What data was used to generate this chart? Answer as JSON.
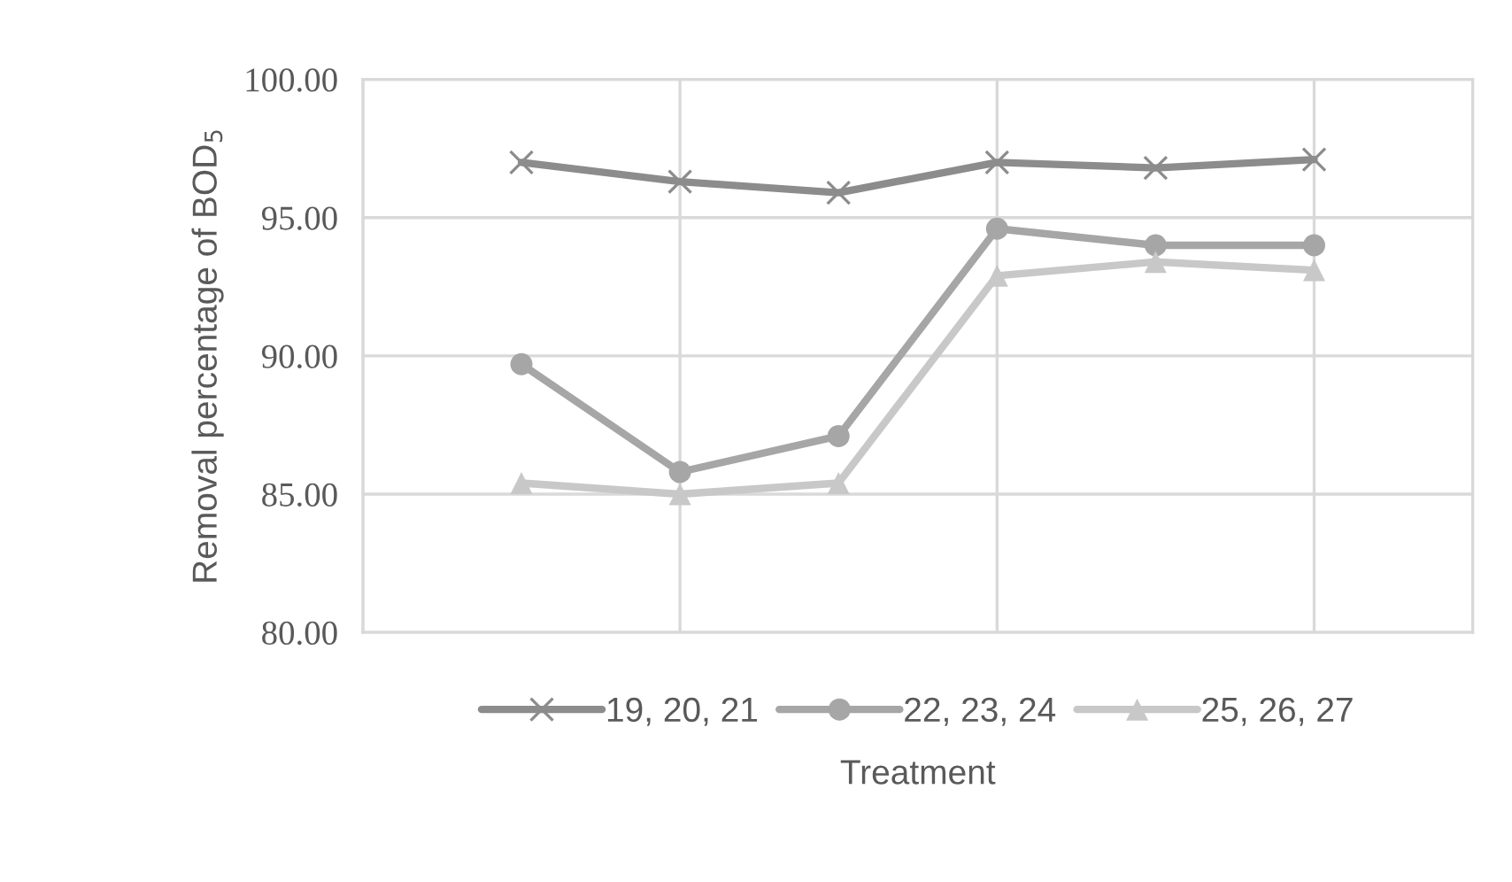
{
  "chart_data": {
    "type": "line",
    "xlabel": "Treatment",
    "ylabel": "Removal percentage of BOD$_{5}$",
    "categories": [
      null,
      null,
      null,
      null,
      null,
      null
    ],
    "ylim": [
      80,
      100
    ],
    "yticks": [
      {
        "value": 80,
        "label": "80.00"
      },
      {
        "value": 85,
        "label": "85.00"
      },
      {
        "value": 90,
        "label": "90.00"
      },
      {
        "value": 95,
        "label": "95.00"
      },
      {
        "value": 100,
        "label": "100.00"
      }
    ],
    "grid": true,
    "legend": "bottom",
    "series": [
      {
        "name": "19, 20, 21",
        "color": "#8c8c8c",
        "marker": "cross",
        "values": [
          97.0,
          96.3,
          95.9,
          97.0,
          96.8,
          97.1
        ]
      },
      {
        "name": "22, 23, 24",
        "color": "#a6a6a6",
        "marker": "circle",
        "values": [
          89.7,
          85.8,
          87.1,
          94.6,
          94.0,
          94.0
        ]
      },
      {
        "name": "25, 26, 27",
        "color": "#c8c8c8",
        "marker": "triangle",
        "values": [
          85.4,
          85.0,
          85.4,
          92.9,
          93.4,
          93.1
        ]
      }
    ]
  }
}
